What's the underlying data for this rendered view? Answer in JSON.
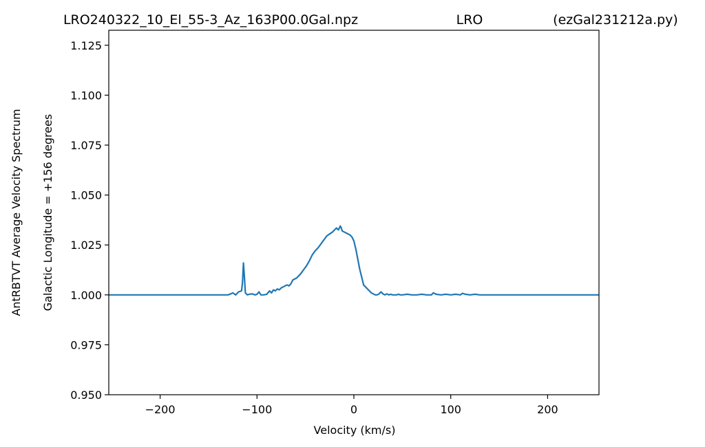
{
  "chart_data": {
    "type": "line",
    "title": {
      "left": "LRO240322_10_El_55-3_Az_163P00.0Gal.npz",
      "center": "LRO",
      "right": "(ezGal231212a.py)"
    },
    "xlabel": "Velocity (km/s)",
    "ylabel_lines": [
      "AntRBTVT Average Velocity Spectrum",
      "Galactic Longitude = +156 degrees"
    ],
    "xlim": [
      -253,
      253
    ],
    "ylim": [
      0.95,
      1.1325
    ],
    "xticks": [
      -200,
      -100,
      0,
      100,
      200
    ],
    "xtick_labels": [
      "−200",
      "−100",
      "0",
      "100",
      "200"
    ],
    "yticks": [
      0.95,
      0.975,
      1.0,
      1.025,
      1.05,
      1.075,
      1.1,
      1.125
    ],
    "ytick_labels": [
      "0.950",
      "0.975",
      "1.000",
      "1.025",
      "1.050",
      "1.075",
      "1.100",
      "1.125"
    ],
    "grid": false,
    "series_color": "#1f77b4",
    "series": [
      {
        "x": [
          -253,
          -130,
          -127,
          -125,
          -122,
          -119,
          -116,
          -115,
          -114,
          -113,
          -112,
          -111,
          -110,
          -108,
          -105,
          -102,
          -100,
          -98,
          -96,
          -93,
          -90,
          -87,
          -85,
          -83,
          -81,
          -79,
          -77,
          -75,
          -73,
          -71,
          -69,
          -67,
          -65,
          -63,
          -61,
          -59,
          -57,
          -55,
          -52,
          -49,
          -46,
          -43,
          -40,
          -37,
          -34,
          -31,
          -28,
          -25,
          -22,
          -20,
          -18,
          -16,
          -14,
          -13,
          -12,
          -10,
          -8,
          -6,
          -4,
          -2,
          0,
          2,
          4,
          6,
          8,
          10,
          12,
          14,
          16,
          18,
          20,
          22,
          24,
          26,
          28,
          30,
          32,
          34,
          36,
          38,
          40,
          42,
          44,
          46,
          48,
          50,
          55,
          60,
          65,
          70,
          75,
          80,
          82,
          85,
          90,
          95,
          100,
          105,
          110,
          112,
          115,
          120,
          125,
          130,
          140,
          253
        ],
        "y": [
          1.0,
          1.0,
          1.0005,
          1.001,
          1.0,
          1.0015,
          1.002,
          1.006,
          1.016,
          1.009,
          1.001,
          1.0005,
          1.0,
          1.0003,
          1.0005,
          1.0,
          1.0003,
          1.0015,
          1.0,
          1.0,
          1.0003,
          1.002,
          1.001,
          1.0025,
          1.002,
          1.003,
          1.0025,
          1.0035,
          1.004,
          1.0045,
          1.005,
          1.0045,
          1.0055,
          1.0075,
          1.008,
          1.0085,
          1.0095,
          1.0105,
          1.0125,
          1.0145,
          1.017,
          1.02,
          1.022,
          1.0235,
          1.0255,
          1.0275,
          1.0295,
          1.0305,
          1.0315,
          1.0325,
          1.0335,
          1.0325,
          1.0345,
          1.0335,
          1.032,
          1.0315,
          1.031,
          1.0305,
          1.03,
          1.029,
          1.027,
          1.023,
          1.018,
          1.013,
          1.009,
          1.005,
          1.004,
          1.003,
          1.002,
          1.001,
          1.0005,
          1.0,
          1.0,
          1.0005,
          1.0015,
          1.0005,
          1.0,
          1.0005,
          1.0,
          1.0003,
          1.0,
          1.0,
          1.0,
          1.0003,
          1.0,
          1.0,
          1.0003,
          1.0,
          1.0,
          1.0003,
          1.0,
          1.0,
          1.001,
          1.0003,
          1.0,
          1.0003,
          1.0,
          1.0003,
          1.0,
          1.0008,
          1.0003,
          1.0,
          1.0003,
          1.0,
          1.0,
          1.0
        ]
      }
    ]
  }
}
